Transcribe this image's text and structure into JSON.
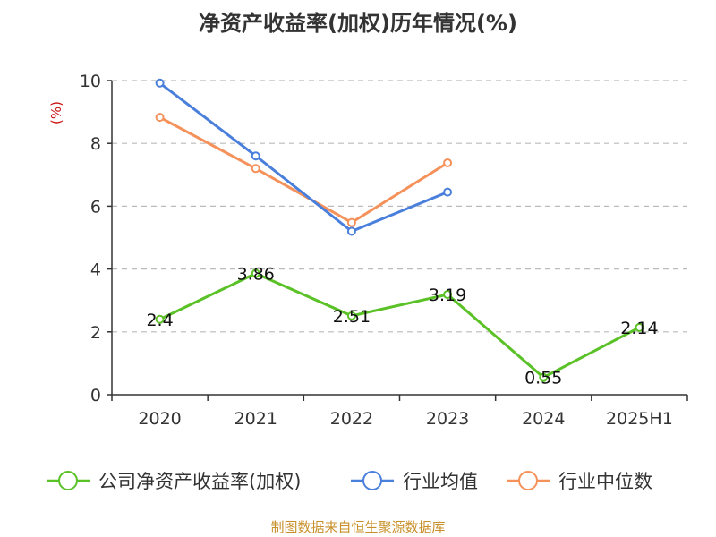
{
  "chart_data": {
    "type": "line",
    "title": "净资产收益率(加权)历年情况(%)",
    "ylabel": "(%)",
    "xlabel": "",
    "categories": [
      "2020",
      "2021",
      "2022",
      "2023",
      "2024",
      "2025H1"
    ],
    "ylim": [
      0,
      10
    ],
    "yticks": [
      0,
      2,
      4,
      6,
      8,
      10
    ],
    "grid": true,
    "legend_position": "bottom",
    "series": [
      {
        "name": "公司净资产收益率(加权)",
        "color": "#5ac127",
        "values": [
          2.4,
          3.86,
          2.51,
          3.19,
          0.55,
          2.14
        ],
        "labels": [
          "2.4",
          "3.86",
          "2.51",
          "3.19",
          "0.55",
          "2.14"
        ]
      },
      {
        "name": "行业均值",
        "color": "#4a7fdc",
        "values": [
          9.92,
          7.6,
          5.2,
          6.45,
          null,
          null
        ]
      },
      {
        "name": "行业中位数",
        "color": "#f5915a",
        "values": [
          8.83,
          7.2,
          5.48,
          7.38,
          null,
          null
        ]
      }
    ]
  },
  "source": "制图数据来自恒生聚源数据库"
}
